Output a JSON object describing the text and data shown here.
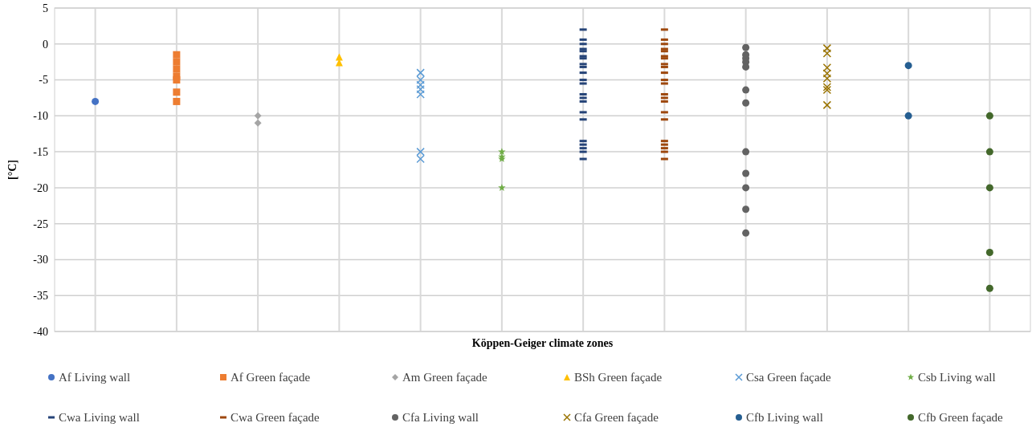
{
  "chart_data": {
    "type": "scatter",
    "xlabel": "Köppen-Geiger climate zones",
    "ylabel": "[°C]",
    "categories": [
      null,
      null,
      null,
      null,
      null,
      null,
      null,
      null,
      null,
      null,
      null,
      null
    ],
    "ylim": [
      -40,
      5
    ],
    "yticks": [
      -40,
      -35,
      -30,
      -25,
      -20,
      -15,
      -10,
      -5,
      0,
      5
    ],
    "grid": true,
    "legend": "bottom",
    "tick_labels": "y",
    "series": [
      {
        "name": "Af Living wall",
        "color": "#4472c4",
        "marker": "circle",
        "values": [
          -8,
          null,
          null,
          null,
          null,
          null,
          null,
          null,
          null,
          null,
          null,
          null
        ]
      },
      {
        "name": "Af Green façade",
        "color": "#ed7d31",
        "marker": "square",
        "values": [
          null,
          -1.5,
          null,
          null,
          null,
          null,
          null,
          null,
          null,
          null,
          null,
          null
        ]
      },
      {
        "color": "#ed7d31",
        "marker": "square",
        "values": [
          null,
          -2.5,
          null,
          null,
          null,
          null,
          null,
          null,
          null,
          null,
          null,
          null
        ]
      },
      {
        "color": "#ed7d31",
        "marker": "square",
        "values": [
          null,
          -3.5,
          null,
          null,
          null,
          null,
          null,
          null,
          null,
          null,
          null,
          null
        ]
      },
      {
        "color": "#ed7d31",
        "marker": "square",
        "values": [
          null,
          -4.5,
          null,
          null,
          null,
          null,
          null,
          null,
          null,
          null,
          null,
          null
        ]
      },
      {
        "color": "#ed7d31",
        "marker": "square",
        "values": [
          null,
          -5,
          null,
          null,
          null,
          null,
          null,
          null,
          null,
          null,
          null,
          null
        ]
      },
      {
        "color": "#ed7d31",
        "marker": "square",
        "values": [
          null,
          -6.7,
          null,
          null,
          null,
          null,
          null,
          null,
          null,
          null,
          null,
          null
        ]
      },
      {
        "color": "#ed7d31",
        "marker": "square",
        "values": [
          null,
          -8,
          null,
          null,
          null,
          null,
          null,
          null,
          null,
          null,
          null,
          null
        ]
      },
      {
        "name": "Am Green façade",
        "color": "#a5a5a5",
        "marker": "diamond",
        "values": [
          null,
          null,
          -10,
          null,
          null,
          null,
          null,
          null,
          null,
          null,
          null,
          null
        ]
      },
      {
        "color": "#a5a5a5",
        "marker": "diamond",
        "values": [
          null,
          null,
          -11,
          null,
          null,
          null,
          null,
          null,
          null,
          null,
          null,
          null
        ]
      },
      {
        "name": "BSh Green façade",
        "color": "#ffc000",
        "marker": "triangle",
        "values": [
          null,
          null,
          null,
          -1.8,
          null,
          null,
          null,
          null,
          null,
          null,
          null,
          null
        ]
      },
      {
        "color": "#ffc000",
        "marker": "triangle",
        "values": [
          null,
          null,
          null,
          -2.6,
          null,
          null,
          null,
          null,
          null,
          null,
          null,
          null
        ]
      },
      {
        "name": "Csa Green façade",
        "color": "#5b9bd5",
        "marker": "cross",
        "values": [
          null,
          null,
          null,
          null,
          -4,
          null,
          null,
          null,
          null,
          null,
          null,
          null
        ]
      },
      {
        "color": "#5b9bd5",
        "marker": "cross",
        "values": [
          null,
          null,
          null,
          null,
          -5,
          null,
          null,
          null,
          null,
          null,
          null,
          null
        ]
      },
      {
        "color": "#5b9bd5",
        "marker": "cross",
        "values": [
          null,
          null,
          null,
          null,
          -5.7,
          null,
          null,
          null,
          null,
          null,
          null,
          null
        ]
      },
      {
        "color": "#5b9bd5",
        "marker": "cross",
        "values": [
          null,
          null,
          null,
          null,
          -6.3,
          null,
          null,
          null,
          null,
          null,
          null,
          null
        ]
      },
      {
        "color": "#5b9bd5",
        "marker": "cross",
        "values": [
          null,
          null,
          null,
          null,
          -7,
          null,
          null,
          null,
          null,
          null,
          null,
          null
        ]
      },
      {
        "color": "#5b9bd5",
        "marker": "cross",
        "values": [
          null,
          null,
          null,
          null,
          -15,
          null,
          null,
          null,
          null,
          null,
          null,
          null
        ]
      },
      {
        "color": "#5b9bd5",
        "marker": "cross",
        "values": [
          null,
          null,
          null,
          null,
          -16,
          null,
          null,
          null,
          null,
          null,
          null,
          null
        ]
      },
      {
        "name": "Csb Living wall",
        "color": "#70ad47",
        "marker": "star",
        "values": [
          null,
          null,
          null,
          null,
          null,
          -15,
          null,
          null,
          null,
          null,
          null,
          null
        ]
      },
      {
        "color": "#70ad47",
        "marker": "star",
        "values": [
          null,
          null,
          null,
          null,
          null,
          -15.7,
          null,
          null,
          null,
          null,
          null,
          null
        ]
      },
      {
        "color": "#70ad47",
        "marker": "star",
        "values": [
          null,
          null,
          null,
          null,
          null,
          -16,
          null,
          null,
          null,
          null,
          null,
          null
        ]
      },
      {
        "color": "#70ad47",
        "marker": "star",
        "values": [
          null,
          null,
          null,
          null,
          null,
          -20,
          null,
          null,
          null,
          null,
          null,
          null
        ]
      },
      {
        "name": "Cwa Living wall",
        "color": "#264478",
        "values": [
          null,
          null,
          null,
          null,
          null,
          null,
          2,
          null,
          null,
          null,
          null,
          null
        ]
      },
      {
        "color": "#264478",
        "values": [
          null,
          null,
          null,
          null,
          null,
          null,
          0.6,
          null,
          null,
          null,
          null,
          null
        ]
      },
      {
        "color": "#264478",
        "values": [
          null,
          null,
          null,
          null,
          null,
          null,
          0,
          null,
          null,
          null,
          null,
          null
        ]
      },
      {
        "color": "#264478",
        "values": [
          null,
          null,
          null,
          null,
          null,
          null,
          -0.7,
          null,
          null,
          null,
          null,
          null
        ]
      },
      {
        "color": "#264478",
        "values": [
          null,
          null,
          null,
          null,
          null,
          null,
          -1,
          null,
          null,
          null,
          null,
          null
        ]
      },
      {
        "color": "#264478",
        "values": [
          null,
          null,
          null,
          null,
          null,
          null,
          -1.7,
          null,
          null,
          null,
          null,
          null
        ]
      },
      {
        "color": "#264478",
        "values": [
          null,
          null,
          null,
          null,
          null,
          null,
          -2,
          null,
          null,
          null,
          null,
          null
        ]
      },
      {
        "color": "#264478",
        "values": [
          null,
          null,
          null,
          null,
          null,
          null,
          -2.8,
          null,
          null,
          null,
          null,
          null
        ]
      },
      {
        "color": "#264478",
        "values": [
          null,
          null,
          null,
          null,
          null,
          null,
          -3.2,
          null,
          null,
          null,
          null,
          null
        ]
      },
      {
        "color": "#264478",
        "values": [
          null,
          null,
          null,
          null,
          null,
          null,
          -4,
          null,
          null,
          null,
          null,
          null
        ]
      },
      {
        "color": "#264478",
        "values": [
          null,
          null,
          null,
          null,
          null,
          null,
          -5,
          null,
          null,
          null,
          null,
          null
        ]
      },
      {
        "color": "#264478",
        "values": [
          null,
          null,
          null,
          null,
          null,
          null,
          -5.5,
          null,
          null,
          null,
          null,
          null
        ]
      },
      {
        "color": "#264478",
        "values": [
          null,
          null,
          null,
          null,
          null,
          null,
          -7,
          null,
          null,
          null,
          null,
          null
        ]
      },
      {
        "color": "#264478",
        "values": [
          null,
          null,
          null,
          null,
          null,
          null,
          -7.5,
          null,
          null,
          null,
          null,
          null
        ]
      },
      {
        "color": "#264478",
        "values": [
          null,
          null,
          null,
          null,
          null,
          null,
          -8,
          null,
          null,
          null,
          null,
          null
        ]
      },
      {
        "color": "#264478",
        "values": [
          null,
          null,
          null,
          null,
          null,
          null,
          -9.5,
          null,
          null,
          null,
          null,
          null
        ]
      },
      {
        "color": "#264478",
        "values": [
          null,
          null,
          null,
          null,
          null,
          null,
          -10.5,
          null,
          null,
          null,
          null,
          null
        ]
      },
      {
        "color": "#264478",
        "values": [
          null,
          null,
          null,
          null,
          null,
          null,
          -13.5,
          null,
          null,
          null,
          null,
          null
        ]
      },
      {
        "color": "#264478",
        "values": [
          null,
          null,
          null,
          null,
          null,
          null,
          -14,
          null,
          null,
          null,
          null,
          null
        ]
      },
      {
        "color": "#264478",
        "values": [
          null,
          null,
          null,
          null,
          null,
          null,
          -14.5,
          null,
          null,
          null,
          null,
          null
        ]
      },
      {
        "color": "#264478",
        "values": [
          null,
          null,
          null,
          null,
          null,
          null,
          -15,
          null,
          null,
          null,
          null,
          null
        ]
      },
      {
        "color": "#264478",
        "values": [
          null,
          null,
          null,
          null,
          null,
          null,
          -16,
          null,
          null,
          null,
          null,
          null
        ]
      },
      {
        "name": "Cwa Green façade",
        "color": "#9e480e",
        "values": [
          null,
          null,
          null,
          null,
          null,
          null,
          null,
          2,
          null,
          null,
          null,
          null
        ]
      },
      {
        "color": "#9e480e",
        "values": [
          null,
          null,
          null,
          null,
          null,
          null,
          null,
          0.6,
          null,
          null,
          null,
          null
        ]
      },
      {
        "color": "#9e480e",
        "values": [
          null,
          null,
          null,
          null,
          null,
          null,
          null,
          0,
          null,
          null,
          null,
          null
        ]
      },
      {
        "color": "#9e480e",
        "values": [
          null,
          null,
          null,
          null,
          null,
          null,
          null,
          -0.7,
          null,
          null,
          null,
          null
        ]
      },
      {
        "color": "#9e480e",
        "values": [
          null,
          null,
          null,
          null,
          null,
          null,
          null,
          -1,
          null,
          null,
          null,
          null
        ]
      },
      {
        "color": "#9e480e",
        "values": [
          null,
          null,
          null,
          null,
          null,
          null,
          null,
          -1.7,
          null,
          null,
          null,
          null
        ]
      },
      {
        "color": "#9e480e",
        "values": [
          null,
          null,
          null,
          null,
          null,
          null,
          null,
          -2,
          null,
          null,
          null,
          null
        ]
      },
      {
        "color": "#9e480e",
        "values": [
          null,
          null,
          null,
          null,
          null,
          null,
          null,
          -2.8,
          null,
          null,
          null,
          null
        ]
      },
      {
        "color": "#9e480e",
        "values": [
          null,
          null,
          null,
          null,
          null,
          null,
          null,
          -3.2,
          null,
          null,
          null,
          null
        ]
      },
      {
        "color": "#9e480e",
        "values": [
          null,
          null,
          null,
          null,
          null,
          null,
          null,
          -4,
          null,
          null,
          null,
          null
        ]
      },
      {
        "color": "#9e480e",
        "values": [
          null,
          null,
          null,
          null,
          null,
          null,
          null,
          -5,
          null,
          null,
          null,
          null
        ]
      },
      {
        "color": "#9e480e",
        "values": [
          null,
          null,
          null,
          null,
          null,
          null,
          null,
          -5.5,
          null,
          null,
          null,
          null
        ]
      },
      {
        "color": "#9e480e",
        "values": [
          null,
          null,
          null,
          null,
          null,
          null,
          null,
          -7,
          null,
          null,
          null,
          null
        ]
      },
      {
        "color": "#9e480e",
        "values": [
          null,
          null,
          null,
          null,
          null,
          null,
          null,
          -7.5,
          null,
          null,
          null,
          null
        ]
      },
      {
        "color": "#9e480e",
        "values": [
          null,
          null,
          null,
          null,
          null,
          null,
          null,
          -8,
          null,
          null,
          null,
          null
        ]
      },
      {
        "color": "#9e480e",
        "values": [
          null,
          null,
          null,
          null,
          null,
          null,
          null,
          -9.5,
          null,
          null,
          null,
          null
        ]
      },
      {
        "color": "#9e480e",
        "values": [
          null,
          null,
          null,
          null,
          null,
          null,
          null,
          -10.5,
          null,
          null,
          null,
          null
        ]
      },
      {
        "color": "#9e480e",
        "values": [
          null,
          null,
          null,
          null,
          null,
          null,
          null,
          -13.5,
          null,
          null,
          null,
          null
        ]
      },
      {
        "color": "#9e480e",
        "values": [
          null,
          null,
          null,
          null,
          null,
          null,
          null,
          -14,
          null,
          null,
          null,
          null
        ]
      },
      {
        "color": "#9e480e",
        "values": [
          null,
          null,
          null,
          null,
          null,
          null,
          null,
          -14.5,
          null,
          null,
          null,
          null
        ]
      },
      {
        "color": "#9e480e",
        "values": [
          null,
          null,
          null,
          null,
          null,
          null,
          null,
          -15,
          null,
          null,
          null,
          null
        ]
      },
      {
        "color": "#9e480e",
        "values": [
          null,
          null,
          null,
          null,
          null,
          null,
          null,
          -16,
          null,
          null,
          null,
          null
        ]
      },
      {
        "name": "Cfa Living wall",
        "color": "#636363",
        "marker": "circle",
        "values": [
          null,
          null,
          null,
          null,
          null,
          null,
          null,
          null,
          -0.5,
          null,
          null,
          null
        ]
      },
      {
        "color": "#636363",
        "marker": "circle",
        "values": [
          null,
          null,
          null,
          null,
          null,
          null,
          null,
          null,
          -1.5,
          null,
          null,
          null
        ]
      },
      {
        "color": "#636363",
        "marker": "circle",
        "values": [
          null,
          null,
          null,
          null,
          null,
          null,
          null,
          null,
          -2,
          null,
          null,
          null
        ]
      },
      {
        "color": "#636363",
        "marker": "circle",
        "values": [
          null,
          null,
          null,
          null,
          null,
          null,
          null,
          null,
          -2.5,
          null,
          null,
          null
        ]
      },
      {
        "color": "#636363",
        "marker": "circle",
        "values": [
          null,
          null,
          null,
          null,
          null,
          null,
          null,
          null,
          -3.2,
          null,
          null,
          null
        ]
      },
      {
        "color": "#636363",
        "marker": "circle",
        "values": [
          null,
          null,
          null,
          null,
          null,
          null,
          null,
          null,
          -6.4,
          null,
          null,
          null
        ]
      },
      {
        "color": "#636363",
        "marker": "circle",
        "values": [
          null,
          null,
          null,
          null,
          null,
          null,
          null,
          null,
          -8.2,
          null,
          null,
          null
        ]
      },
      {
        "color": "#636363",
        "marker": "circle",
        "values": [
          null,
          null,
          null,
          null,
          null,
          null,
          null,
          null,
          -15,
          null,
          null,
          null
        ]
      },
      {
        "color": "#636363",
        "marker": "circle",
        "values": [
          null,
          null,
          null,
          null,
          null,
          null,
          null,
          null,
          -18,
          null,
          null,
          null
        ]
      },
      {
        "color": "#636363",
        "marker": "circle",
        "values": [
          null,
          null,
          null,
          null,
          null,
          null,
          null,
          null,
          -20,
          null,
          null,
          null
        ]
      },
      {
        "color": "#636363",
        "marker": "circle",
        "values": [
          null,
          null,
          null,
          null,
          null,
          null,
          null,
          null,
          -23,
          null,
          null,
          null
        ]
      },
      {
        "color": "#636363",
        "marker": "circle",
        "values": [
          null,
          null,
          null,
          null,
          null,
          null,
          null,
          null,
          -26.3,
          null,
          null,
          null
        ]
      },
      {
        "name": "Cfa Green façade",
        "color": "#997300",
        "marker": "cross",
        "values": [
          null,
          null,
          null,
          null,
          null,
          null,
          null,
          null,
          null,
          -0.6,
          null,
          null
        ]
      },
      {
        "color": "#997300",
        "marker": "cross",
        "values": [
          null,
          null,
          null,
          null,
          null,
          null,
          null,
          null,
          null,
          -1.3,
          null,
          null
        ]
      },
      {
        "color": "#997300",
        "marker": "cross",
        "values": [
          null,
          null,
          null,
          null,
          null,
          null,
          null,
          null,
          null,
          -3.3,
          null,
          null
        ]
      },
      {
        "color": "#997300",
        "marker": "cross",
        "values": [
          null,
          null,
          null,
          null,
          null,
          null,
          null,
          null,
          null,
          -4.1,
          null,
          null
        ]
      },
      {
        "color": "#997300",
        "marker": "cross",
        "values": [
          null,
          null,
          null,
          null,
          null,
          null,
          null,
          null,
          null,
          -4.8,
          null,
          null
        ]
      },
      {
        "color": "#997300",
        "marker": "cross",
        "values": [
          null,
          null,
          null,
          null,
          null,
          null,
          null,
          null,
          null,
          -6,
          null,
          null
        ]
      },
      {
        "color": "#997300",
        "marker": "cross",
        "values": [
          null,
          null,
          null,
          null,
          null,
          null,
          null,
          null,
          null,
          -6.4,
          null,
          null
        ]
      },
      {
        "color": "#997300",
        "marker": "cross",
        "values": [
          null,
          null,
          null,
          null,
          null,
          null,
          null,
          null,
          null,
          -8.5,
          null,
          null
        ]
      },
      {
        "name": "Cfb Living wall",
        "color": "#255e91",
        "marker": "circle",
        "values": [
          null,
          null,
          null,
          null,
          null,
          null,
          null,
          null,
          null,
          null,
          -3,
          null
        ]
      },
      {
        "color": "#255e91",
        "marker": "circle",
        "values": [
          null,
          null,
          null,
          null,
          null,
          null,
          null,
          null,
          null,
          null,
          -10,
          null
        ]
      },
      {
        "name": "Cfb Green façade",
        "color": "#43682b",
        "marker": "circle",
        "values": [
          null,
          null,
          null,
          null,
          null,
          null,
          null,
          null,
          null,
          null,
          null,
          -10
        ]
      },
      {
        "color": "#43682b",
        "marker": "circle",
        "values": [
          null,
          null,
          null,
          null,
          null,
          null,
          null,
          null,
          null,
          null,
          null,
          -15
        ]
      },
      {
        "color": "#43682b",
        "marker": "circle",
        "values": [
          null,
          null,
          null,
          null,
          null,
          null,
          null,
          null,
          null,
          null,
          null,
          -20
        ]
      },
      {
        "color": "#43682b",
        "marker": "circle",
        "values": [
          null,
          null,
          null,
          null,
          null,
          null,
          null,
          null,
          null,
          null,
          null,
          -29
        ]
      },
      {
        "color": "#43682b",
        "marker": "circle",
        "values": [
          null,
          null,
          null,
          null,
          null,
          null,
          null,
          null,
          null,
          null,
          null,
          -34
        ]
      }
    ]
  }
}
